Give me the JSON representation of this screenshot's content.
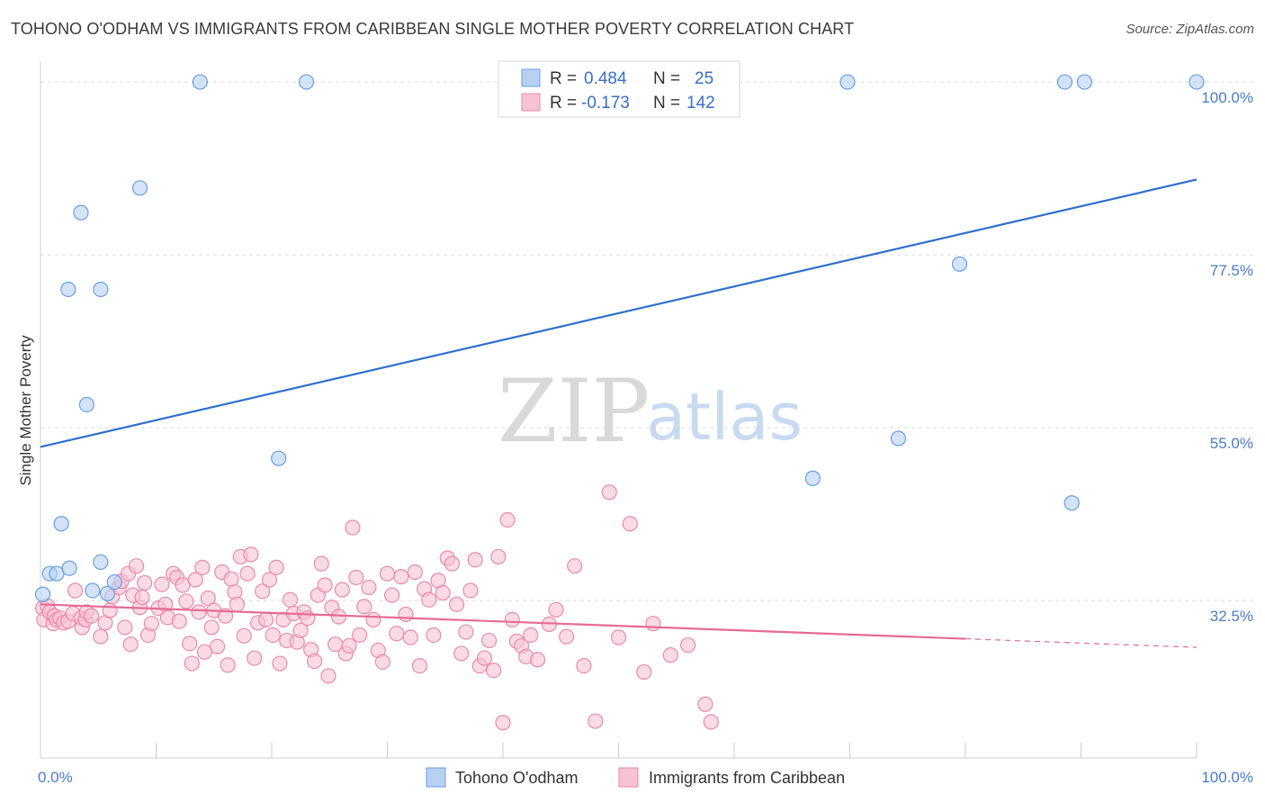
{
  "header": {
    "title": "TOHONO O'ODHAM VS IMMIGRANTS FROM CARIBBEAN SINGLE MOTHER POVERTY CORRELATION CHART",
    "source": "Source: ZipAtlas.com"
  },
  "watermark": {
    "zip": "ZIP",
    "atlas": "atlas"
  },
  "legend": {
    "r_label": "R =",
    "n_label": "N =",
    "rows": [
      {
        "r": "0.484",
        "n": "25"
      },
      {
        "r": "-0.173",
        "n": "142"
      }
    ]
  },
  "colors": {
    "blue_fill": "#b8d1f3",
    "blue_stroke": "#6a9ee0",
    "blue_line": "#2f6fcc",
    "pink_fill": "#f7c3d3",
    "pink_stroke": "#e98aa8",
    "pink_line": "#e46b96",
    "grid": "#d9d9d9"
  },
  "chart_data": {
    "type": "scatter",
    "title": "TOHONO O'ODHAM VS IMMIGRANTS FROM CARIBBEAN SINGLE MOTHER POVERTY CORRELATION CHART",
    "xlabel": "",
    "ylabel": "Single Mother Poverty",
    "xlim": [
      0,
      100
    ],
    "ylim": [
      12,
      102
    ],
    "x_tick_labels": [
      "0.0%",
      "100.0%"
    ],
    "y_ticks": [
      {
        "value": 100,
        "label": "100.0%"
      },
      {
        "value": 77.5,
        "label": "77.5%"
      },
      {
        "value": 55,
        "label": "55.0%"
      },
      {
        "value": 32.5,
        "label": "32.5%"
      }
    ],
    "grid": true,
    "legend_position": "top-center",
    "series": [
      {
        "name": "Tohono O'odham",
        "r": 0.484,
        "n": 25,
        "trend": {
          "x": [
            0,
            100
          ],
          "y": [
            52.5,
            87.3
          ]
        },
        "points": [
          [
            0.2,
            33.3
          ],
          [
            0.8,
            36.0
          ],
          [
            1.4,
            36.0
          ],
          [
            1.8,
            42.5
          ],
          [
            2.5,
            36.7
          ],
          [
            3.5,
            83.0
          ],
          [
            2.4,
            73.0
          ],
          [
            4.0,
            58.0
          ],
          [
            5.2,
            73.0
          ],
          [
            5.2,
            37.5
          ],
          [
            4.5,
            33.8
          ],
          [
            5.8,
            33.4
          ],
          [
            6.4,
            34.9
          ],
          [
            8.6,
            86.2
          ],
          [
            13.8,
            100.0
          ],
          [
            20.6,
            51.0
          ],
          [
            23.0,
            100.0
          ],
          [
            66.8,
            48.4
          ],
          [
            69.8,
            100.0
          ],
          [
            74.2,
            53.6
          ],
          [
            79.5,
            76.3
          ],
          [
            88.6,
            100.0
          ],
          [
            89.2,
            45.2
          ],
          [
            90.3,
            100.0
          ],
          [
            100.0,
            100.0
          ]
        ]
      },
      {
        "name": "Immigrants from Caribbean",
        "r": -0.173,
        "n": 142,
        "trend": {
          "x": [
            0,
            100
          ],
          "y": [
            32.0,
            26.4
          ],
          "solid_until_x": 80
        },
        "points": [
          [
            0.2,
            31.5
          ],
          [
            0.3,
            30.0
          ],
          [
            0.6,
            31.8
          ],
          [
            0.8,
            31.0
          ],
          [
            1.1,
            29.5
          ],
          [
            1.2,
            30.5
          ],
          [
            1.4,
            30.0
          ],
          [
            1.7,
            30.2
          ],
          [
            2.0,
            29.6
          ],
          [
            2.4,
            29.8
          ],
          [
            2.8,
            30.8
          ],
          [
            3.0,
            33.8
          ],
          [
            3.5,
            30.2
          ],
          [
            3.6,
            29.0
          ],
          [
            3.9,
            30.0
          ],
          [
            4.0,
            31.0
          ],
          [
            4.4,
            30.5
          ],
          [
            5.2,
            27.8
          ],
          [
            5.6,
            29.6
          ],
          [
            6.0,
            31.2
          ],
          [
            6.2,
            33.0
          ],
          [
            6.8,
            34.2
          ],
          [
            7.0,
            35.0
          ],
          [
            7.3,
            29.0
          ],
          [
            7.6,
            36.0
          ],
          [
            7.8,
            26.8
          ],
          [
            8.0,
            33.2
          ],
          [
            8.3,
            37.0
          ],
          [
            8.6,
            31.6
          ],
          [
            8.8,
            32.9
          ],
          [
            9.0,
            34.8
          ],
          [
            9.3,
            28.0
          ],
          [
            9.6,
            29.5
          ],
          [
            10.2,
            31.5
          ],
          [
            10.5,
            34.6
          ],
          [
            10.8,
            32.0
          ],
          [
            11.0,
            30.3
          ],
          [
            11.5,
            36.0
          ],
          [
            11.8,
            35.5
          ],
          [
            12.0,
            29.8
          ],
          [
            12.3,
            34.5
          ],
          [
            12.6,
            32.4
          ],
          [
            12.9,
            26.9
          ],
          [
            13.1,
            24.3
          ],
          [
            13.4,
            35.2
          ],
          [
            13.7,
            31.0
          ],
          [
            14.0,
            36.8
          ],
          [
            14.2,
            25.8
          ],
          [
            14.5,
            32.8
          ],
          [
            14.8,
            29.0
          ],
          [
            15.0,
            31.2
          ],
          [
            15.3,
            26.5
          ],
          [
            15.7,
            36.2
          ],
          [
            16.0,
            30.5
          ],
          [
            16.2,
            24.1
          ],
          [
            16.5,
            35.3
          ],
          [
            16.8,
            33.6
          ],
          [
            17.0,
            32.0
          ],
          [
            17.3,
            38.2
          ],
          [
            17.6,
            27.9
          ],
          [
            17.9,
            36.0
          ],
          [
            18.2,
            38.5
          ],
          [
            18.5,
            25.0
          ],
          [
            18.8,
            29.6
          ],
          [
            19.2,
            33.7
          ],
          [
            19.5,
            30.0
          ],
          [
            19.8,
            35.2
          ],
          [
            20.1,
            28.0
          ],
          [
            20.4,
            36.8
          ],
          [
            20.7,
            24.3
          ],
          [
            21.0,
            30.0
          ],
          [
            21.3,
            27.3
          ],
          [
            21.6,
            32.6
          ],
          [
            21.9,
            30.8
          ],
          [
            22.2,
            27.1
          ],
          [
            22.5,
            28.6
          ],
          [
            22.8,
            31.0
          ],
          [
            23.1,
            30.2
          ],
          [
            23.4,
            26.1
          ],
          [
            23.7,
            24.6
          ],
          [
            24.0,
            33.2
          ],
          [
            24.3,
            37.3
          ],
          [
            24.6,
            34.5
          ],
          [
            24.9,
            22.7
          ],
          [
            25.2,
            31.6
          ],
          [
            25.5,
            26.8
          ],
          [
            25.8,
            30.4
          ],
          [
            26.1,
            33.9
          ],
          [
            26.4,
            25.6
          ],
          [
            26.7,
            26.6
          ],
          [
            27.0,
            42.0
          ],
          [
            27.3,
            35.5
          ],
          [
            27.6,
            28.0
          ],
          [
            28.0,
            31.7
          ],
          [
            28.4,
            34.2
          ],
          [
            28.8,
            30.0
          ],
          [
            29.2,
            26.0
          ],
          [
            29.6,
            24.5
          ],
          [
            30.0,
            36.0
          ],
          [
            30.4,
            33.2
          ],
          [
            30.8,
            28.2
          ],
          [
            31.2,
            35.6
          ],
          [
            31.6,
            30.7
          ],
          [
            32.0,
            27.7
          ],
          [
            32.4,
            36.2
          ],
          [
            32.8,
            24.0
          ],
          [
            33.2,
            34.0
          ],
          [
            33.6,
            32.6
          ],
          [
            34.0,
            28.0
          ],
          [
            34.4,
            35.1
          ],
          [
            34.8,
            33.5
          ],
          [
            35.2,
            38.0
          ],
          [
            35.6,
            37.3
          ],
          [
            36.0,
            32.0
          ],
          [
            36.4,
            25.6
          ],
          [
            36.8,
            28.4
          ],
          [
            37.2,
            33.8
          ],
          [
            37.6,
            37.8
          ],
          [
            38.0,
            24.0
          ],
          [
            38.4,
            25.0
          ],
          [
            38.8,
            27.3
          ],
          [
            39.2,
            23.4
          ],
          [
            39.6,
            38.2
          ],
          [
            40.0,
            16.6
          ],
          [
            40.4,
            43.0
          ],
          [
            40.8,
            30.0
          ],
          [
            41.2,
            27.2
          ],
          [
            41.6,
            26.6
          ],
          [
            42.0,
            25.2
          ],
          [
            42.4,
            28.0
          ],
          [
            43.0,
            24.8
          ],
          [
            44.0,
            29.4
          ],
          [
            44.6,
            31.3
          ],
          [
            45.5,
            27.8
          ],
          [
            46.2,
            37.0
          ],
          [
            47.0,
            24.0
          ],
          [
            48.0,
            16.8
          ],
          [
            49.2,
            46.6
          ],
          [
            50.0,
            27.7
          ],
          [
            51.0,
            42.5
          ],
          [
            52.2,
            23.2
          ],
          [
            53.0,
            29.5
          ],
          [
            54.5,
            25.4
          ],
          [
            56.0,
            26.7
          ],
          [
            57.5,
            19.0
          ],
          [
            58.0,
            16.7
          ]
        ]
      }
    ]
  },
  "bottom_legend": {
    "items": [
      {
        "label": "Tohono O'odham"
      },
      {
        "label": "Immigrants from Caribbean"
      }
    ]
  }
}
